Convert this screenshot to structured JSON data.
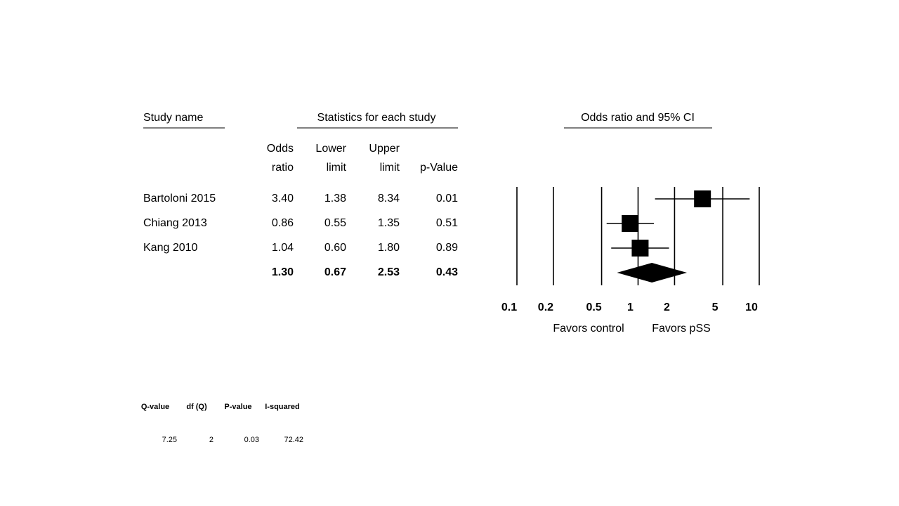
{
  "chart_data": {
    "type": "forest",
    "title": "Odds ratio and 95% CI",
    "study_header": "Study name",
    "stats_header": "Statistics for each study",
    "categories": [
      "Bartoloni 2015",
      "Chiang 2013",
      "Kang 2010",
      null
    ],
    "series": [
      {
        "name": "Odds ratio",
        "values": [
          3.4,
          0.86,
          1.04,
          1.3
        ],
        "value_labels": [
          "3.40",
          "0.86",
          "1.04",
          "1.30"
        ]
      },
      {
        "name": "Lower limit",
        "values": [
          1.38,
          0.55,
          0.6,
          0.67
        ],
        "value_labels": [
          "1.38",
          "0.55",
          "0.60",
          "0.67"
        ]
      },
      {
        "name": "Upper limit",
        "values": [
          8.34,
          1.35,
          1.8,
          2.53
        ],
        "value_labels": [
          "8.34",
          "1.35",
          "1.80",
          "2.53"
        ]
      },
      {
        "name": "p-Value",
        "values": [
          0.01,
          0.51,
          0.89,
          0.43
        ],
        "value_labels": [
          "0.01",
          "0.51",
          "0.89",
          "0.43"
        ]
      }
    ],
    "xlim": [
      0.1,
      10
    ],
    "xticks": [
      0.1,
      0.2,
      0.5,
      1,
      2,
      5,
      10
    ],
    "log_scale": true,
    "grid": true,
    "color": "#000000",
    "favors_left": "Favors control",
    "favors_right": "Favors pSS"
  },
  "heterogeneity": {
    "headers": [
      "Q-value",
      "df (Q)",
      "P-value",
      "I-squared"
    ],
    "values": [
      7.25,
      2,
      0.03,
      72.42
    ]
  }
}
